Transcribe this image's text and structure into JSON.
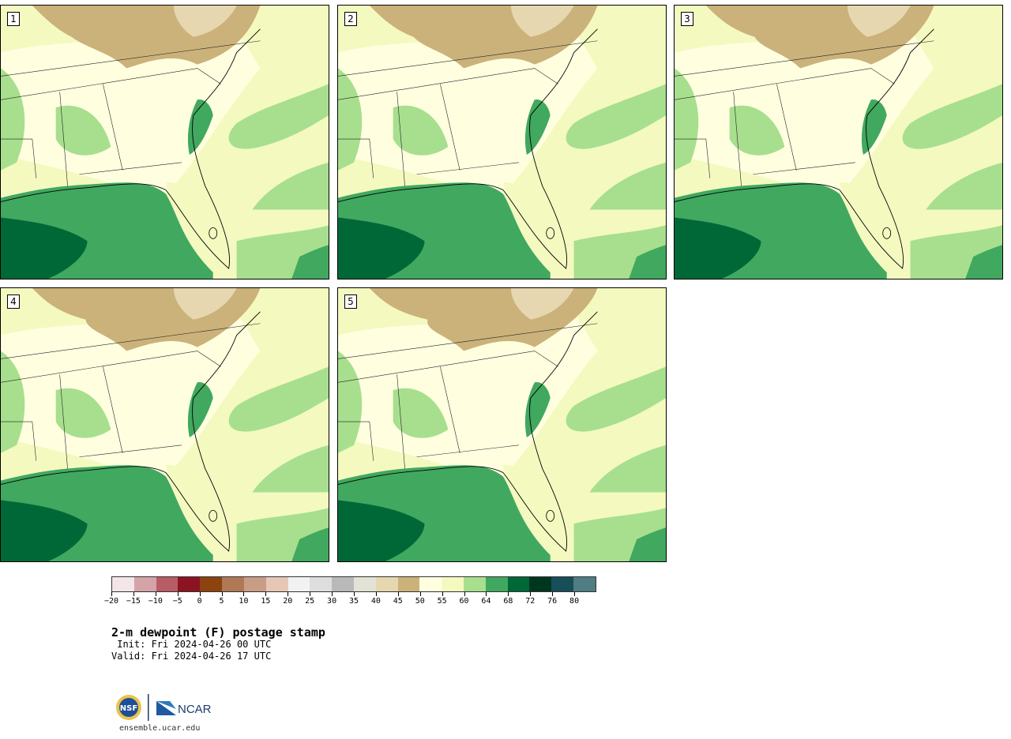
{
  "panels": [
    {
      "label": "1"
    },
    {
      "label": "2"
    },
    {
      "label": "3"
    },
    {
      "label": "4"
    },
    {
      "label": "5"
    }
  ],
  "colorbar": {
    "ticks": [
      "−20",
      "−15",
      "−10",
      "−5",
      "0",
      "5",
      "10",
      "15",
      "20",
      "25",
      "30",
      "35",
      "40",
      "45",
      "50",
      "55",
      "60",
      "64",
      "68",
      "72",
      "76",
      "80"
    ],
    "colors": [
      "#f4e6e8",
      "#d4a3a8",
      "#b85c66",
      "#8b1420",
      "#8c4310",
      "#b07955",
      "#c99d85",
      "#e6c7b5",
      "#f2f2f2",
      "#dedede",
      "#b9b9b9",
      "#e2e2d6",
      "#e6d7b0",
      "#cbb27a",
      "#ffffe0",
      "#f4f9c0",
      "#a7df8e",
      "#41a85f",
      "#006837",
      "#00361e",
      "#184e58",
      "#4f7d83"
    ],
    "color_names": {
      "ocean": "#41a85f",
      "deep_ocean": "#006837",
      "land_dry": "#cbb27a",
      "land_moist": "#f4f9c0"
    }
  },
  "title": "2-m dewpoint (F) postage stamp",
  "init": " Init: Fri 2024-04-26 00 UTC",
  "valid": "Valid: Fri 2024-04-26 17 UTC",
  "footer": {
    "logo_nsf": "NSF",
    "logo_ncar": "NCAR",
    "url": "ensemble.ucar.edu"
  }
}
